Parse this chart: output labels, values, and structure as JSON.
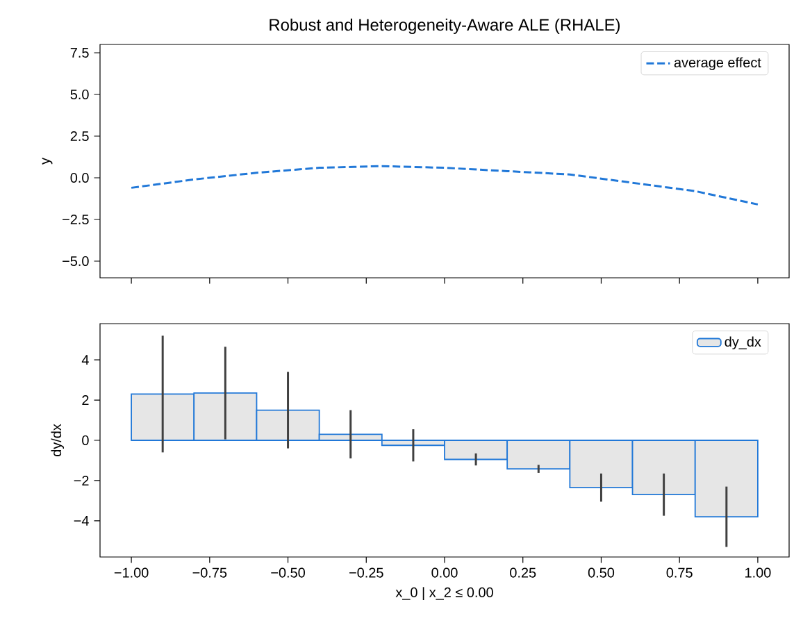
{
  "chart_data": [
    {
      "type": "line",
      "title": "Robust and Heterogeneity-Aware ALE (RHALE)",
      "ylabel": "y",
      "series": [
        {
          "name": "average effect",
          "color": "#2178d8",
          "x": [
            -1,
            -0.8,
            -0.6,
            -0.4,
            -0.2,
            0,
            0.2,
            0.4,
            0.6,
            0.8,
            1
          ],
          "values": [
            -0.6,
            -0.1,
            0.3,
            0.6,
            0.7,
            0.6,
            0.4,
            0.2,
            -0.3,
            -0.8,
            -1.6
          ]
        }
      ],
      "xlim": [
        -1.1,
        1.1
      ],
      "xticks": [
        {
          "value": -1,
          "label": null
        },
        {
          "value": -0.75,
          "label": null
        },
        {
          "value": -0.5,
          "label": null
        },
        {
          "value": -0.25,
          "label": null
        },
        {
          "value": 0,
          "label": null
        },
        {
          "value": 0.25,
          "label": null
        },
        {
          "value": 0.5,
          "label": null
        },
        {
          "value": 0.75,
          "label": null
        },
        {
          "value": 1,
          "label": null
        }
      ],
      "ylim": [
        -6,
        8
      ],
      "yticks": [
        {
          "value": -5,
          "label": "−5.0"
        },
        {
          "value": -2.5,
          "label": "−2.5"
        },
        {
          "value": 0,
          "label": "0.0"
        },
        {
          "value": 2.5,
          "label": "2.5"
        },
        {
          "value": 5,
          "label": "5.0"
        },
        {
          "value": 7.5,
          "label": "7.5"
        }
      ],
      "tick_labels": "y",
      "legend": "top right",
      "marker": "none",
      "line_style": "dashed"
    },
    {
      "type": "histogram",
      "xlabel": "x_0 | x_2 ≤ 0.00",
      "ylabel": "dy/dx",
      "bins": [
        -1,
        -0.8,
        -0.6,
        -0.4,
        -0.2,
        0,
        0.2,
        0.4,
        0.6,
        0.8,
        1
      ],
      "series": [
        {
          "name": "dy_dx",
          "color": "#e6e6e6",
          "values": [
            2.3,
            2.35,
            1.5,
            0.3,
            -0.25,
            -0.95,
            -1.42,
            -2.35,
            -2.7,
            -3.8
          ],
          "errors": [
            2.9,
            2.3,
            1.9,
            1.2,
            0.8,
            0.3,
            0.2,
            0.7,
            1.05,
            1.5
          ]
        }
      ],
      "xlim": [
        -1.1,
        1.1
      ],
      "xticks": [
        {
          "value": -1,
          "label": "−1.00"
        },
        {
          "value": -0.75,
          "label": "−0.75"
        },
        {
          "value": -0.5,
          "label": "−0.50"
        },
        {
          "value": -0.25,
          "label": "−0.25"
        },
        {
          "value": 0,
          "label": "0.00"
        },
        {
          "value": 0.25,
          "label": "0.25"
        },
        {
          "value": 0.5,
          "label": "0.50"
        },
        {
          "value": 0.75,
          "label": "0.75"
        },
        {
          "value": 1,
          "label": "1.00"
        }
      ],
      "ylim": [
        -5.8,
        5.8
      ],
      "yticks": [
        {
          "value": -4,
          "label": "−4"
        },
        {
          "value": -2,
          "label": "−2"
        },
        {
          "value": 0,
          "label": "0"
        },
        {
          "value": 2,
          "label": "2"
        },
        {
          "value": 4,
          "label": "4"
        }
      ],
      "legend": "top right"
    }
  ]
}
